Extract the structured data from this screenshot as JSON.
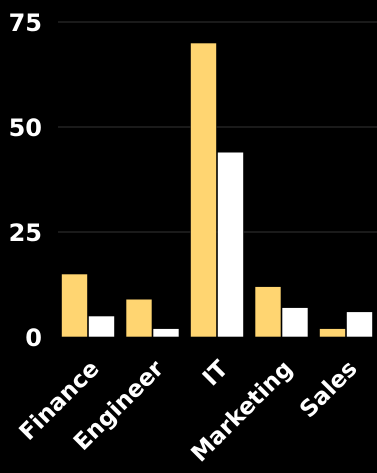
{
  "chart_data": {
    "type": "bar",
    "title": "",
    "xlabel": "",
    "ylabel": "",
    "categories": [
      "Finance",
      "Engineer",
      "IT",
      "Marketing",
      "Sales"
    ],
    "series": [
      {
        "values": [
          15,
          9,
          70,
          12,
          2
        ],
        "color": "#FFD571"
      },
      {
        "values": [
          5,
          2,
          44,
          7,
          6
        ],
        "color": "#FFFFFF"
      }
    ],
    "ylim": [
      0,
      75
    ],
    "yticks": [
      "0",
      "25",
      "50",
      "75"
    ],
    "ytick_values": [
      0,
      25,
      50,
      75
    ],
    "grid": true,
    "legend": "none",
    "background": "#000000",
    "grid_color": "#333333"
  }
}
